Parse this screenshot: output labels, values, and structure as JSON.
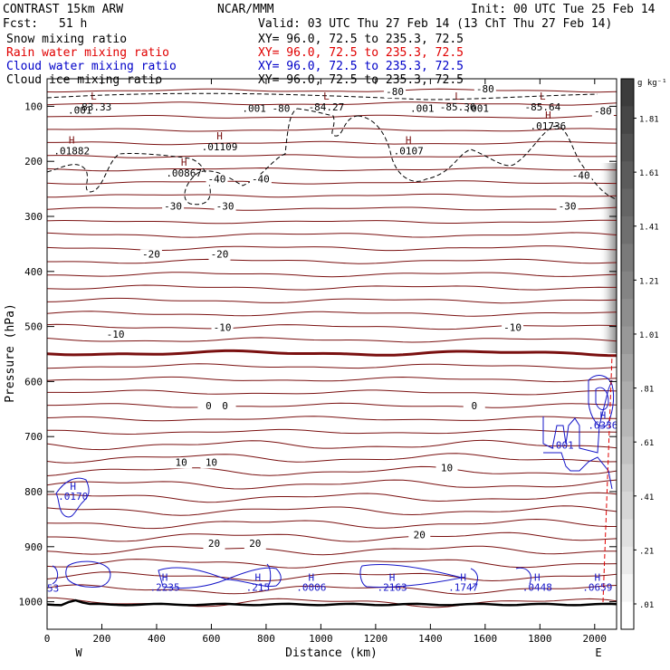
{
  "header": {
    "model": "CONTRAST 15km ARW",
    "org": "NCAR/MMM",
    "init": "Init: 00 UTC Tue 25 Feb 14",
    "fcst_label": "Fcst:",
    "fcst_value": "51 h",
    "valid": "Valid: 03 UTC Thu 27 Feb 14 (13 ChT Thu 27 Feb 14)"
  },
  "fields": [
    {
      "name": "Snow mixing ratio",
      "xy": "XY=  96.0, 72.5 to 235.3, 72.5",
      "color": "#000000"
    },
    {
      "name": "Rain water mixing ratio",
      "xy": "XY=  96.0, 72.5 to 235.3, 72.5",
      "color": "#e00000"
    },
    {
      "name": "Cloud water mixing ratio",
      "xy": "XY=  96.0, 72.5 to 235.3, 72.5",
      "color": "#0000c8"
    },
    {
      "name": "Cloud ice mixing ratio",
      "xy": "XY=  96.0, 72.5 to 235.3, 72.5",
      "color": "#000000"
    }
  ],
  "colors": {
    "temperature": "#7a1010",
    "zero_isotherm": "#7a1010",
    "cloud_water": "#1515c8",
    "rain": "#e00000",
    "snow": "#000000"
  },
  "chart_data": {
    "type": "cross-section",
    "xlabel": "Distance (km)",
    "ylabel": "Pressure (hPa)",
    "xlim": [
      0,
      2080
    ],
    "ylim": [
      1050,
      50
    ],
    "x_ticks": [
      0,
      200,
      400,
      600,
      800,
      1000,
      1200,
      1400,
      1600,
      1800,
      2000
    ],
    "y_ticks": [
      100,
      200,
      300,
      400,
      500,
      600,
      700,
      800,
      900,
      1000
    ],
    "endpoints": {
      "left": "W",
      "right": "E"
    },
    "colorbar": {
      "units": "g kg⁻¹",
      "levels": [
        ".01",
        ".21",
        ".41",
        ".61",
        ".81",
        "1.01",
        "1.21",
        "1.41",
        "1.61",
        "1.81"
      ]
    },
    "temperature_labels": [
      {
        "text": "-80",
        "x": 1270,
        "p": 80,
        "kind": "isotherm"
      },
      {
        "text": "-80",
        "x": 1600,
        "p": 75,
        "kind": "isotherm"
      },
      {
        "text": "-80",
        "x": 2030,
        "p": 115,
        "kind": "isotherm"
      },
      {
        "text": "-40",
        "x": 620,
        "p": 238,
        "kind": "isotherm"
      },
      {
        "text": "-40",
        "x": 780,
        "p": 238,
        "kind": "isotherm"
      },
      {
        "text": "-40",
        "x": 1950,
        "p": 232,
        "kind": "isotherm"
      },
      {
        "text": "-30",
        "x": 460,
        "p": 288,
        "kind": "isotherm"
      },
      {
        "text": "-30",
        "x": 650,
        "p": 288,
        "kind": "isotherm"
      },
      {
        "text": "-30",
        "x": 1900,
        "p": 288,
        "kind": "isotherm"
      },
      {
        "text": "-20",
        "x": 380,
        "p": 375,
        "kind": "isotherm"
      },
      {
        "text": "-20",
        "x": 630,
        "p": 375,
        "kind": "isotherm"
      },
      {
        "text": "-10",
        "x": 250,
        "p": 520,
        "kind": "isotherm"
      },
      {
        "text": "-10",
        "x": 640,
        "p": 508,
        "kind": "isotherm"
      },
      {
        "text": "-10",
        "x": 1700,
        "p": 508,
        "kind": "isotherm"
      },
      {
        "text": "0",
        "x": 590,
        "p": 650,
        "kind": "zero"
      },
      {
        "text": "0",
        "x": 650,
        "p": 650,
        "kind": "zero"
      },
      {
        "text": "0",
        "x": 1560,
        "p": 650,
        "kind": "zero"
      },
      {
        "text": "10",
        "x": 490,
        "p": 753,
        "kind": "isotherm"
      },
      {
        "text": "10",
        "x": 600,
        "p": 753,
        "kind": "isotherm"
      },
      {
        "text": "10",
        "x": 1460,
        "p": 763,
        "kind": "isotherm"
      },
      {
        "text": "20",
        "x": 610,
        "p": 900,
        "kind": "isotherm"
      },
      {
        "text": "20",
        "x": 760,
        "p": 900,
        "kind": "isotherm"
      },
      {
        "text": "20",
        "x": 1360,
        "p": 885,
        "kind": "isotherm"
      }
    ],
    "upper_extrema": [
      {
        "mark": "L",
        "x": 170,
        "p": 88,
        "value": "-83.33"
      },
      {
        "mark": "L",
        "x": 1020,
        "p": 88,
        "value": "-84.27"
      },
      {
        "mark": "L",
        "x": 1500,
        "p": 88,
        "value": "-85.36"
      },
      {
        "mark": "L",
        "x": 1810,
        "p": 88,
        "value": "-85.64"
      },
      {
        "mark": "",
        "x": 800,
        "p": 110,
        "value": ".001 -80"
      },
      {
        "mark": "",
        "x": 1370,
        "p": 110,
        "value": ".001"
      },
      {
        "mark": "",
        "x": 1570,
        "p": 110,
        "value": ".001"
      },
      {
        "mark": "",
        "x": 120,
        "p": 113,
        "value": ".001"
      },
      {
        "mark": "H",
        "x": 630,
        "p": 160,
        "value": ".01109"
      },
      {
        "mark": "H",
        "x": 1830,
        "p": 122,
        "value": ".01736"
      },
      {
        "mark": "H",
        "x": 90,
        "p": 168,
        "value": ".01882"
      },
      {
        "mark": "H",
        "x": 1320,
        "p": 168,
        "value": ".0107"
      },
      {
        "mark": "H",
        "x": 500,
        "p": 208,
        "value": ".00867"
      }
    ],
    "cloud_water_extrema": [
      {
        "mark": "H",
        "x": 95,
        "p": 797,
        "value": ".0170"
      },
      {
        "mark": "H",
        "x": 430,
        "p": 962,
        "value": ".2235"
      },
      {
        "mark": "H",
        "x": 770,
        "p": 962,
        "value": ".215"
      },
      {
        "mark": "H",
        "x": 965,
        "p": 962,
        "value": ".0006"
      },
      {
        "mark": "H",
        "x": 1260,
        "p": 962,
        "value": ".2163"
      },
      {
        "mark": "H",
        "x": 1520,
        "p": 962,
        "value": ".1747"
      },
      {
        "mark": "H",
        "x": 1790,
        "p": 962,
        "value": ".0448"
      },
      {
        "mark": "H",
        "x": 2010,
        "p": 962,
        "value": ".0659"
      },
      {
        "mark": "H",
        "x": 2030,
        "p": 668,
        "value": ".6336"
      },
      {
        "mark": "",
        "x": 1880,
        "p": 722,
        "value": ".001"
      }
    ],
    "left_edge_label": "53"
  }
}
